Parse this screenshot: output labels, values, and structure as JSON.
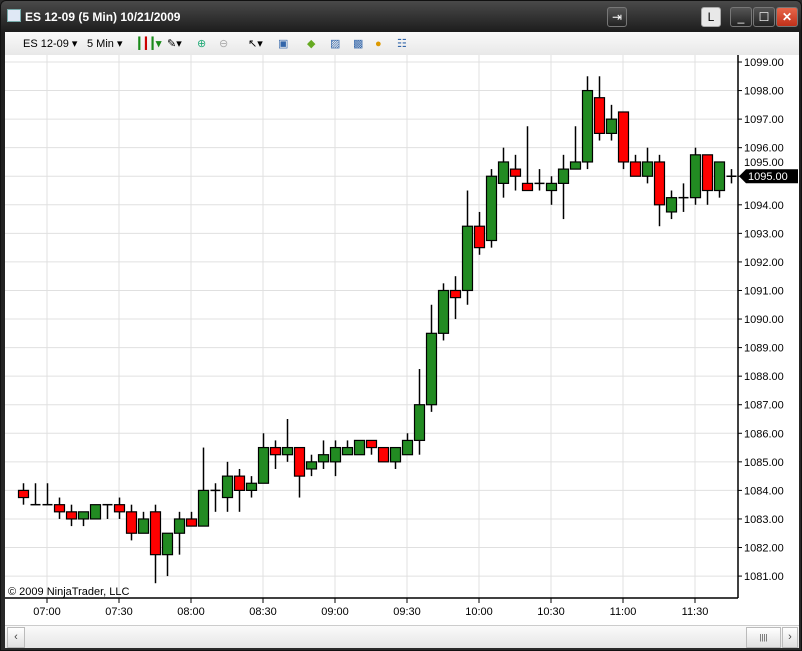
{
  "window": {
    "title": "ES 12-09 (5 Min)  10/21/2009",
    "link_button": "L",
    "icons": [
      "chart-app-icon",
      "detach-icon",
      "minimize-icon",
      "maximize-icon",
      "close-icon"
    ]
  },
  "toolbar": {
    "instrument": "ES 12-09",
    "interval": "5 Min",
    "icons": [
      "candlestick-style-icon",
      "drawing-pencil-icon",
      "zoom-in-icon",
      "zoom-out-icon",
      "cursor-icon",
      "data-box-icon",
      "strategies-icon",
      "properties-icon",
      "indicators-icon",
      "orders-icon",
      "chart-trader-icon"
    ]
  },
  "chart_data": {
    "type": "candlestick",
    "ylim": [
      1080.6,
      1099.1
    ],
    "y_ticks": [
      "1081.00",
      "1082.00",
      "1083.00",
      "1084.00",
      "1085.00",
      "1086.00",
      "1087.00",
      "1088.00",
      "1089.00",
      "1090.00",
      "1091.00",
      "1092.00",
      "1093.00",
      "1094.00",
      "1095.00",
      "1096.00",
      "1097.00",
      "1098.00",
      "1099.00"
    ],
    "x_ticks": [
      "07:00",
      "07:30",
      "08:00",
      "08:30",
      "09:00",
      "09:30",
      "10:00",
      "10:30",
      "11:00",
      "11:30"
    ],
    "grid": true,
    "last_price": "1095.00",
    "colors": {
      "up": "#228b22",
      "down": "#ff0000",
      "wick": "#000000"
    },
    "copyright": "© 2009 NinjaTrader, LLC",
    "bars": [
      [
        "06:50",
        1084.0,
        1084.25,
        1083.5,
        1083.75
      ],
      [
        "06:55",
        1083.5,
        1084.25,
        1083.5,
        1083.5
      ],
      [
        "07:00",
        1083.5,
        1084.25,
        1083.5,
        1083.5
      ],
      [
        "07:05",
        1083.5,
        1083.75,
        1083.0,
        1083.25
      ],
      [
        "07:10",
        1083.25,
        1083.5,
        1082.75,
        1083.0
      ],
      [
        "07:15",
        1083.0,
        1083.25,
        1082.75,
        1083.25
      ],
      [
        "07:20",
        1083.0,
        1083.5,
        1083.0,
        1083.5
      ],
      [
        "07:25",
        1083.5,
        1083.5,
        1083.0,
        1083.5
      ],
      [
        "07:30",
        1083.5,
        1083.75,
        1083.0,
        1083.25
      ],
      [
        "07:35",
        1083.25,
        1083.5,
        1082.25,
        1082.5
      ],
      [
        "07:40",
        1082.5,
        1083.25,
        1082.5,
        1083.0
      ],
      [
        "07:45",
        1083.25,
        1083.5,
        1080.75,
        1081.75
      ],
      [
        "07:50",
        1081.75,
        1082.5,
        1081.0,
        1082.5
      ],
      [
        "07:55",
        1082.5,
        1083.25,
        1081.75,
        1083.0
      ],
      [
        "08:00",
        1083.0,
        1083.25,
        1082.75,
        1082.75
      ],
      [
        "08:05",
        1082.75,
        1085.5,
        1082.75,
        1084.0
      ],
      [
        "08:10",
        1084.0,
        1084.25,
        1083.25,
        1084.0
      ],
      [
        "08:15",
        1083.75,
        1085.0,
        1083.25,
        1084.5
      ],
      [
        "08:20",
        1084.5,
        1084.75,
        1083.25,
        1084.0
      ],
      [
        "08:25",
        1084.0,
        1084.5,
        1083.75,
        1084.25
      ],
      [
        "08:30",
        1084.25,
        1086.0,
        1084.25,
        1085.5
      ],
      [
        "08:35",
        1085.5,
        1085.75,
        1084.75,
        1085.25
      ],
      [
        "08:40",
        1085.25,
        1086.5,
        1085.0,
        1085.5
      ],
      [
        "08:45",
        1085.5,
        1085.5,
        1083.75,
        1084.5
      ],
      [
        "08:50",
        1084.75,
        1085.25,
        1084.5,
        1085.0
      ],
      [
        "08:55",
        1085.0,
        1085.75,
        1084.75,
        1085.25
      ],
      [
        "09:00",
        1085.0,
        1085.75,
        1084.5,
        1085.5
      ],
      [
        "09:05",
        1085.25,
        1085.75,
        1085.25,
        1085.5
      ],
      [
        "09:10",
        1085.25,
        1085.75,
        1085.25,
        1085.75
      ],
      [
        "09:15",
        1085.75,
        1085.75,
        1085.25,
        1085.5
      ],
      [
        "09:20",
        1085.5,
        1085.5,
        1085.0,
        1085.0
      ],
      [
        "09:25",
        1085.0,
        1085.5,
        1084.75,
        1085.5
      ],
      [
        "09:30",
        1085.25,
        1086.0,
        1085.25,
        1085.75
      ],
      [
        "09:35",
        1085.75,
        1088.25,
        1085.25,
        1087.0
      ],
      [
        "09:40",
        1087.0,
        1090.5,
        1086.75,
        1089.5
      ],
      [
        "09:45",
        1089.5,
        1091.25,
        1089.25,
        1091.0
      ],
      [
        "09:50",
        1091.0,
        1091.5,
        1090.0,
        1090.75
      ],
      [
        "09:55",
        1091.0,
        1094.5,
        1090.5,
        1093.25
      ],
      [
        "10:00",
        1093.25,
        1093.75,
        1092.25,
        1092.5
      ],
      [
        "10:05",
        1092.75,
        1095.25,
        1092.5,
        1095.0
      ],
      [
        "10:10",
        1094.75,
        1096.0,
        1094.25,
        1095.5
      ],
      [
        "10:15",
        1095.25,
        1095.75,
        1094.5,
        1095.0
      ],
      [
        "10:20",
        1094.75,
        1096.75,
        1094.5,
        1094.5
      ],
      [
        "10:25",
        1094.75,
        1095.25,
        1094.5,
        1094.75
      ],
      [
        "10:30",
        1094.5,
        1095.0,
        1094.0,
        1094.75
      ],
      [
        "10:35",
        1094.75,
        1095.75,
        1093.5,
        1095.25
      ],
      [
        "10:40",
        1095.25,
        1096.75,
        1095.25,
        1095.5
      ],
      [
        "10:45",
        1095.5,
        1098.5,
        1095.25,
        1098.0
      ],
      [
        "10:50",
        1097.75,
        1098.5,
        1096.25,
        1096.5
      ],
      [
        "10:55",
        1096.5,
        1097.5,
        1096.25,
        1097.0
      ],
      [
        "11:00",
        1097.25,
        1097.25,
        1095.25,
        1095.5
      ],
      [
        "11:05",
        1095.5,
        1095.75,
        1095.0,
        1095.0
      ],
      [
        "11:10",
        1095.0,
        1096.0,
        1094.75,
        1095.5
      ],
      [
        "11:15",
        1095.5,
        1095.75,
        1093.25,
        1094.0
      ],
      [
        "11:20",
        1093.75,
        1094.5,
        1093.5,
        1094.25
      ],
      [
        "11:25",
        1094.25,
        1094.75,
        1093.75,
        1094.25
      ],
      [
        "11:30",
        1094.25,
        1096.0,
        1094.0,
        1095.75
      ],
      [
        "11:35",
        1095.75,
        1095.75,
        1094.0,
        1094.5
      ],
      [
        "11:40",
        1094.5,
        1095.5,
        1094.25,
        1095.5
      ],
      [
        "11:45",
        1095.0,
        1095.25,
        1094.75,
        1095.0
      ]
    ]
  },
  "scrollbar": {
    "left_arrow": "‹",
    "right_arrow": "›",
    "thumb_grip": "||||"
  }
}
